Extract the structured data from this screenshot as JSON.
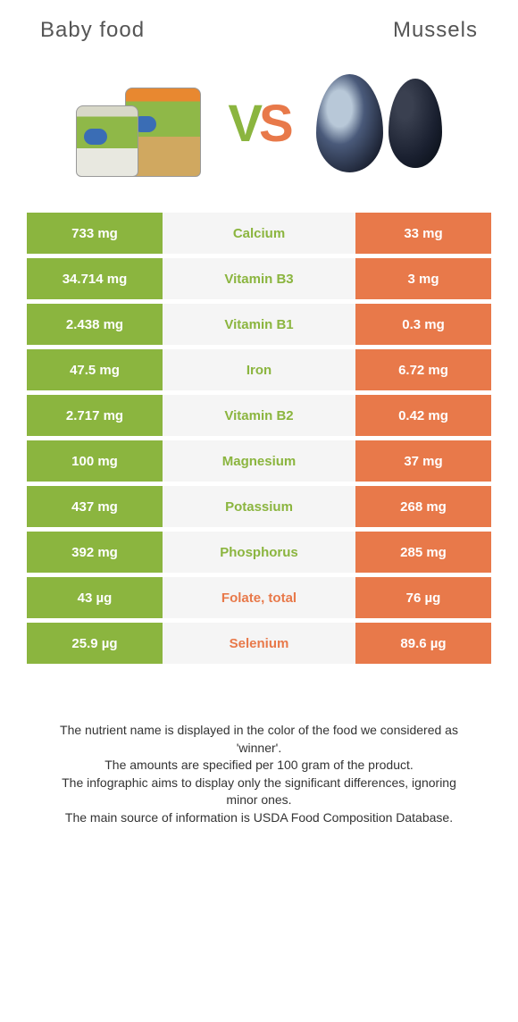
{
  "colors": {
    "green": "#8bb53f",
    "orange": "#e8794a",
    "gray_bg": "#f5f5f5"
  },
  "header": {
    "left_title": "Baby food",
    "right_title": "Mussels",
    "vs_v": "V",
    "vs_s": "S"
  },
  "rows": [
    {
      "left": "733 mg",
      "mid": "Calcium",
      "right": "33 mg",
      "winner": "left"
    },
    {
      "left": "34.714 mg",
      "mid": "Vitamin B3",
      "right": "3 mg",
      "winner": "left"
    },
    {
      "left": "2.438 mg",
      "mid": "Vitamin B1",
      "right": "0.3 mg",
      "winner": "left"
    },
    {
      "left": "47.5 mg",
      "mid": "Iron",
      "right": "6.72 mg",
      "winner": "left"
    },
    {
      "left": "2.717 mg",
      "mid": "Vitamin B2",
      "right": "0.42 mg",
      "winner": "left"
    },
    {
      "left": "100 mg",
      "mid": "Magnesium",
      "right": "37 mg",
      "winner": "left"
    },
    {
      "left": "437 mg",
      "mid": "Potassium",
      "right": "268 mg",
      "winner": "left"
    },
    {
      "left": "392 mg",
      "mid": "Phosphorus",
      "right": "285 mg",
      "winner": "left"
    },
    {
      "left": "43 µg",
      "mid": "Folate, total",
      "right": "76 µg",
      "winner": "right"
    },
    {
      "left": "25.9 µg",
      "mid": "Selenium",
      "right": "89.6 µg",
      "winner": "right"
    }
  ],
  "footer": {
    "l1": "The nutrient name is displayed in the color of the food we considered as 'winner'.",
    "l2": "The amounts are specified per 100 gram of the product.",
    "l3": "The infographic aims to display only the significant differences, ignoring minor ones.",
    "l4": "The main source of information is USDA Food Composition Database."
  }
}
